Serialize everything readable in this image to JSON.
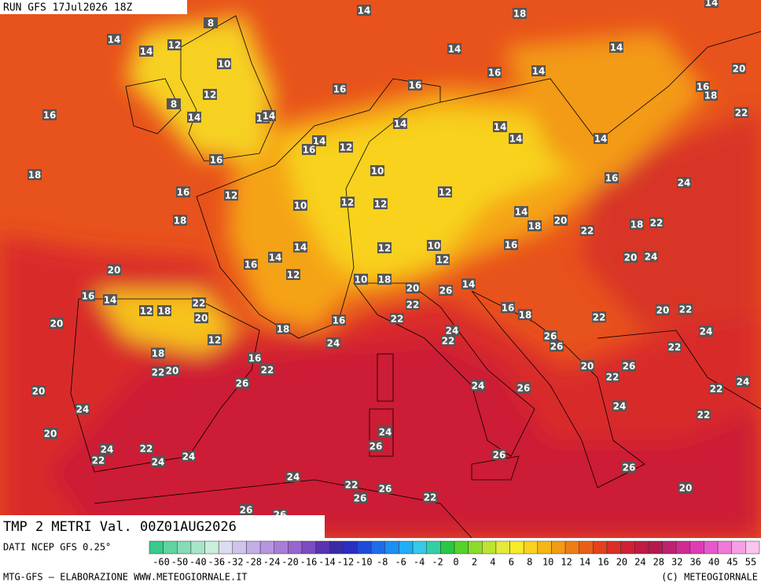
{
  "header": {
    "run": "RUN GFS 17Jul2026 18Z"
  },
  "title": "TMP 2 METRI Val. 00Z01AUG2026",
  "footer": {
    "source": "DATI NCEP GFS 0.25°",
    "credit": "MTG-GFS — ELABORAZIONE WWW.METEOGIORNALE.IT",
    "copyright": "(C) METEOGIORNALE"
  },
  "scale_labels": [
    -60,
    -50,
    -40,
    -36,
    -32,
    -28,
    -24,
    -20,
    -16,
    -14,
    -12,
    -10,
    -8,
    -6,
    -4,
    -2,
    0,
    2,
    4,
    6,
    8,
    10,
    12,
    14,
    16,
    20,
    24,
    28,
    32,
    36,
    40,
    45,
    55
  ],
  "map_labels": [
    14,
    18,
    14,
    8,
    14,
    14,
    12,
    14,
    14,
    10,
    20,
    16,
    16,
    14,
    16,
    12,
    16,
    18,
    8,
    16,
    14,
    12,
    14,
    22,
    14,
    14,
    14,
    16,
    12,
    14,
    14,
    16,
    18,
    10,
    16,
    24,
    12,
    16,
    12,
    10,
    12,
    12,
    14,
    18,
    20,
    18,
    18,
    22,
    22,
    14,
    16,
    12,
    10,
    20,
    24,
    14,
    16,
    12,
    20,
    12,
    10,
    18,
    20,
    14,
    16,
    14,
    26,
    22,
    22,
    12,
    18,
    16,
    18,
    20,
    22,
    20,
    20,
    22,
    16,
    22,
    18,
    24,
    24,
    22,
    12,
    24,
    26,
    26,
    22,
    18,
    16,
    22,
    20,
    22,
    20,
    26,
    22,
    26,
    24,
    26,
    20,
    22,
    24,
    24,
    24,
    22,
    20,
    24,
    26,
    24,
    22,
    22,
    24,
    24,
    26,
    26,
    24,
    22,
    26,
    20,
    26,
    22,
    26,
    26
  ]
}
